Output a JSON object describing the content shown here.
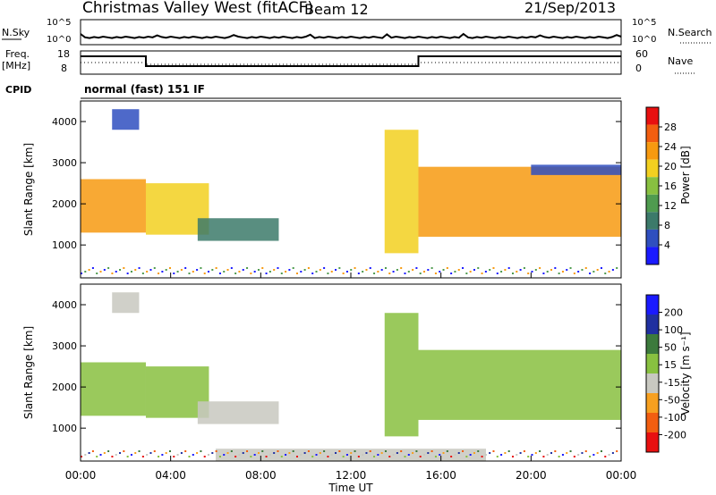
{
  "header": {
    "station": "Christmas Valley West (fitACF)",
    "beam": "Beam 12",
    "date": "21/Sep/2013"
  },
  "noise_panel": {
    "left_label": "N.Sky",
    "right_label": "N.Search",
    "left_ticks": [
      "10^5",
      "10^0"
    ],
    "right_ticks": [
      "10^5",
      "10^0"
    ]
  },
  "freq_panel": {
    "left_label": "Freq.",
    "left_unit": "[MHz]",
    "right_label": "Nave",
    "left_ticks": [
      "18",
      "8"
    ],
    "right_ticks": [
      "60",
      "0"
    ]
  },
  "cpid": {
    "label": "CPID",
    "value": "normal (fast) 151 IF"
  },
  "colors": {
    "power_scale": [
      "#1a1aff",
      "#2f4fbf",
      "#3c7a6a",
      "#4f9b4f",
      "#88c040",
      "#f2d020",
      "#f79a10",
      "#f25e10",
      "#e81010"
    ],
    "velocity_scale": [
      "#e81010",
      "#f25e10",
      "#f7a020",
      "#c8c8c0",
      "#88c040",
      "#3c7a3c",
      "#2030a0",
      "#1a1aff"
    ]
  },
  "chart_data": [
    {
      "type": "heatmap",
      "name": "power",
      "ylabel": "Slant Range [km]",
      "yticks": [
        "4000",
        "3000",
        "2000",
        "1000"
      ],
      "ylim": [
        200,
        4500
      ],
      "xlim": [
        0,
        24
      ],
      "colorbar_label": "Power [dB]",
      "colorbar_ticks": [
        "28",
        "24",
        "20",
        "16",
        "12",
        "8",
        "4"
      ],
      "clim": [
        0,
        32
      ],
      "echo_regions": [
        {
          "t0": 0.0,
          "t1": 2.9,
          "r0": 1300,
          "r1": 2600,
          "value": 24
        },
        {
          "t0": 2.9,
          "t1": 5.7,
          "r0": 1250,
          "r1": 2500,
          "value": 20
        },
        {
          "t0": 5.2,
          "t1": 8.8,
          "r0": 1100,
          "r1": 1650,
          "value": 10
        },
        {
          "t0": 1.4,
          "t1": 2.6,
          "r0": 3800,
          "r1": 4300,
          "value": 6
        },
        {
          "t0": 13.5,
          "t1": 15.0,
          "r0": 800,
          "r1": 3800,
          "value": 20
        },
        {
          "t0": 15.0,
          "t1": 24.0,
          "r0": 1200,
          "r1": 2900,
          "value": 22
        },
        {
          "t0": 20.0,
          "t1": 24.0,
          "r0": 2700,
          "r1": 2950,
          "value": 6
        }
      ]
    },
    {
      "type": "heatmap",
      "name": "velocity",
      "ylabel": "Slant Range [km]",
      "yticks": [
        "4000",
        "3000",
        "2000",
        "1000"
      ],
      "ylim": [
        200,
        4500
      ],
      "xlim": [
        0,
        24
      ],
      "xticks": [
        "00:00",
        "04:00",
        "08:00",
        "12:00",
        "16:00",
        "20:00",
        "00:00"
      ],
      "xlabel": "Time UT",
      "colorbar_label": "Velocity [m s⁻¹]",
      "colorbar_ticks": [
        "200",
        "100",
        "50",
        "15",
        "-15",
        "-50",
        "-100",
        "-200"
      ],
      "clim": [
        -250,
        250
      ],
      "echo_regions": [
        {
          "t0": 0.0,
          "t1": 2.9,
          "r0": 1300,
          "r1": 2600,
          "value": 0
        },
        {
          "t0": 2.9,
          "t1": 5.7,
          "r0": 1250,
          "r1": 2500,
          "value": 0
        },
        {
          "t0": 5.2,
          "t1": 8.8,
          "r0": 1100,
          "r1": 1650,
          "value": -60
        },
        {
          "t0": 1.4,
          "t1": 2.6,
          "r0": 3800,
          "r1": 4300,
          "value": -60
        },
        {
          "t0": 13.5,
          "t1": 15.0,
          "r0": 800,
          "r1": 3800,
          "value": 60
        },
        {
          "t0": 15.0,
          "t1": 24.0,
          "r0": 1200,
          "r1": 2900,
          "value": 0
        },
        {
          "t0": 6.0,
          "t1": 18.0,
          "r0": 200,
          "r1": 500,
          "value": -60
        }
      ]
    }
  ]
}
